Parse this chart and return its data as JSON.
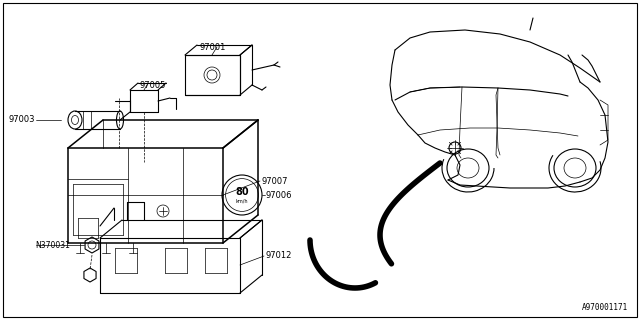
{
  "bg_color": "#ffffff",
  "dc": "#000000",
  "fig_width": 6.4,
  "fig_height": 3.2,
  "dpi": 100,
  "watermark": "A970001171",
  "lw_thin": 0.5,
  "lw_med": 0.8,
  "lw_thick": 1.1,
  "lw_arrow": 3.5
}
